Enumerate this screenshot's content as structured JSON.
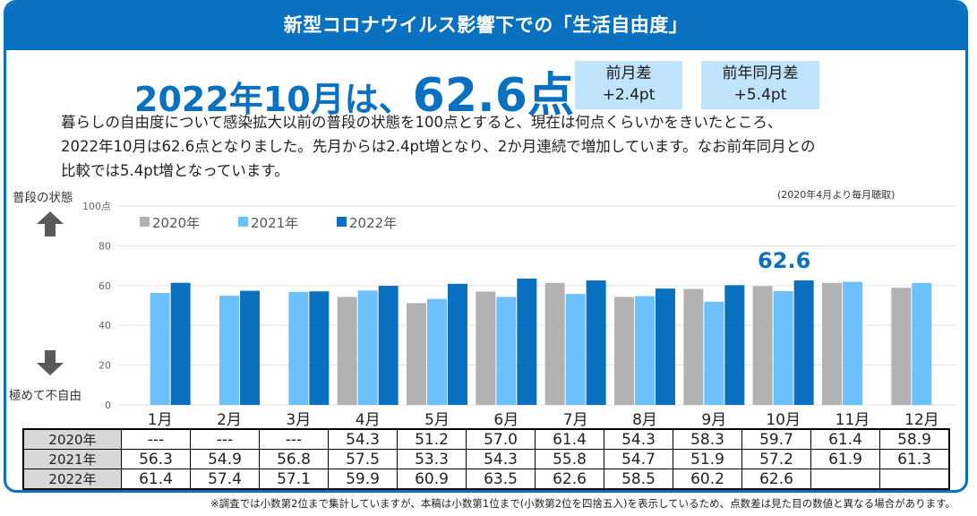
{
  "header": {
    "title": "新型コロナウイルス影響下での「生活自由度」"
  },
  "headline": {
    "prefix": "2022年10月は、",
    "value": "62.6点"
  },
  "deltas": [
    {
      "label": "前月差",
      "value": "+2.4pt"
    },
    {
      "label": "前年同月差",
      "value": "+5.4pt"
    }
  ],
  "body": {
    "lines": [
      "暮らしの自由度について感染拡大以前の普段の状態を100点とすると、現在は何点くらいかをきいたところ、",
      "2022年10月は62.6点となりました。先月からは2.4pt増となり、2か月連続で増加しています。なお前年同月との",
      "比較では5.4pt増となっています。"
    ]
  },
  "side": {
    "top_label": "普段の状態",
    "bottom_label": "極めて不自由"
  },
  "note_top": "(2020年4月より毎月聴取)",
  "footnote": "※調査では小数第2位まで集計していますが、本稿は小数第1位まで(小数第2位を四捨五入)を表示しているため、点数差は見た目の数値と異なる場合があります。",
  "colors": {
    "brand": "#0a71c0",
    "s2020": "#b2b2b2",
    "s2021": "#6cc0fb",
    "s2022": "#0a71c0",
    "delta_bg": "#c0e4fb"
  },
  "chart_data": {
    "type": "bar",
    "title": "",
    "xlabel": "",
    "ylabel": "",
    "ylim": [
      0,
      100
    ],
    "yticks": [
      "0",
      "20",
      "40",
      "60",
      "80",
      "100点"
    ],
    "grid": true,
    "legend_position": "top-left",
    "categories": [
      "1月",
      "2月",
      "3月",
      "4月",
      "5月",
      "6月",
      "7月",
      "8月",
      "9月",
      "10月",
      "11月",
      "12月"
    ],
    "series": [
      {
        "name": "2020年",
        "values": [
          null,
          null,
          null,
          54.3,
          51.2,
          57.0,
          61.4,
          54.3,
          58.3,
          59.7,
          61.4,
          58.9
        ]
      },
      {
        "name": "2021年",
        "values": [
          56.3,
          54.9,
          56.8,
          57.5,
          53.3,
          54.3,
          55.8,
          54.7,
          51.9,
          57.2,
          61.9,
          61.3
        ]
      },
      {
        "name": "2022年",
        "values": [
          61.4,
          57.4,
          57.1,
          59.9,
          60.9,
          63.5,
          62.6,
          58.5,
          60.2,
          62.6,
          null,
          null
        ]
      }
    ],
    "annotation": {
      "category": "10月",
      "series": "2022年",
      "text": "62.6"
    }
  },
  "table": {
    "rows": [
      {
        "label": "2020年",
        "cells": [
          "---",
          "---",
          "---",
          "54.3",
          "51.2",
          "57.0",
          "61.4",
          "54.3",
          "58.3",
          "59.7",
          "61.4",
          "58.9"
        ]
      },
      {
        "label": "2021年",
        "cells": [
          "56.3",
          "54.9",
          "56.8",
          "57.5",
          "53.3",
          "54.3",
          "55.8",
          "54.7",
          "51.9",
          "57.2",
          "61.9",
          "61.3"
        ]
      },
      {
        "label": "2022年",
        "cells": [
          "61.4",
          "57.4",
          "57.1",
          "59.9",
          "60.9",
          "63.5",
          "62.6",
          "58.5",
          "60.2",
          "62.6",
          "",
          ""
        ]
      }
    ]
  }
}
